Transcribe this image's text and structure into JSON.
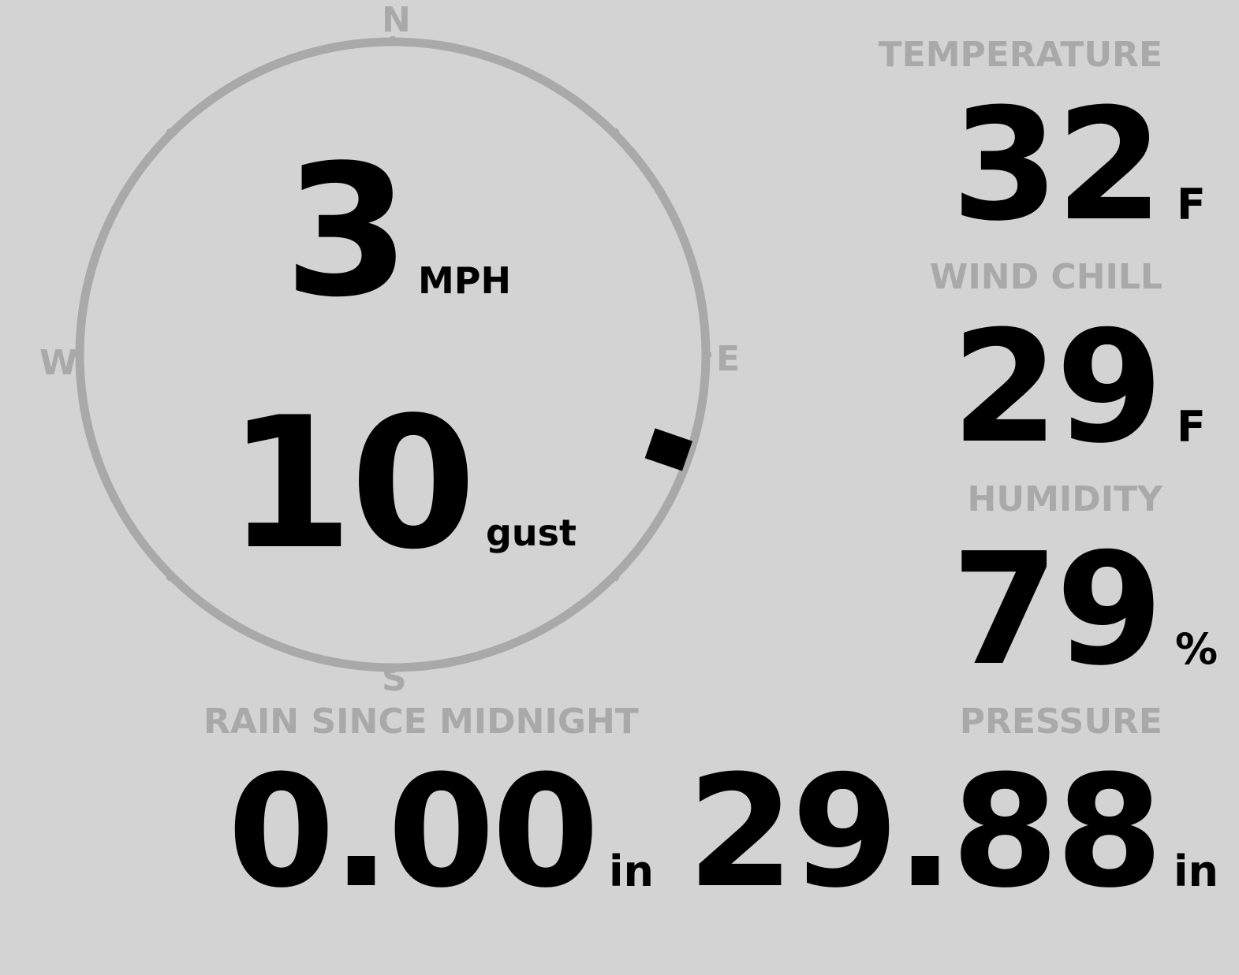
{
  "wind": {
    "speed": "3",
    "speed_unit": "MPH",
    "gust": "10",
    "gust_unit": "gust",
    "direction_degrees": 109,
    "compass": {
      "north": "N",
      "east": "E",
      "south": "S",
      "west": "W"
    }
  },
  "temperature": {
    "label": "TEMPERATURE",
    "value": "32",
    "unit": "F"
  },
  "wind_chill": {
    "label": "WIND CHILL",
    "value": "29",
    "unit": "F"
  },
  "humidity": {
    "label": "HUMIDITY",
    "value": "79",
    "unit": "%"
  },
  "rain": {
    "label": "RAIN SINCE MIDNIGHT",
    "value": "0.00",
    "unit": "in"
  },
  "pressure": {
    "label": "PRESSURE",
    "value": "29.88",
    "unit": "in"
  },
  "colors": {
    "background": "#d3d3d3",
    "dial": "#a9a9a9",
    "value": "#000000",
    "label": "#a9a9a9"
  }
}
